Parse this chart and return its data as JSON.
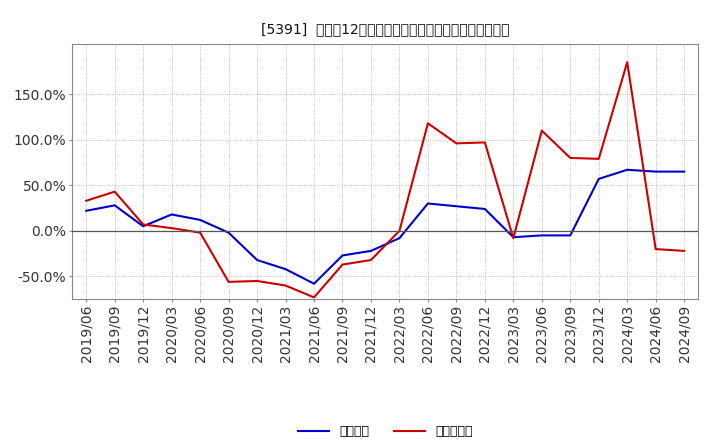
{
  "title": "[5391]  利益だ12か月移動合計の対前年同期増減率の推移",
  "background_color": "#ffffff",
  "plot_bg_color": "#ffffff",
  "grid_color": "#aaaaaa",
  "x_labels": [
    "2019/06",
    "2019/09",
    "2019/12",
    "2020/03",
    "2020/06",
    "2020/09",
    "2020/12",
    "2021/03",
    "2021/06",
    "2021/09",
    "2021/12",
    "2022/03",
    "2022/06",
    "2022/09",
    "2022/12",
    "2023/03",
    "2023/06",
    "2023/09",
    "2023/12",
    "2024/03",
    "2024/06",
    "2024/09"
  ],
  "operating_profit": [
    0.22,
    0.28,
    0.05,
    0.18,
    0.12,
    -0.02,
    -0.32,
    -0.42,
    -0.58,
    -0.27,
    -0.22,
    -0.08,
    0.3,
    0.27,
    0.24,
    -0.07,
    -0.05,
    -0.05,
    0.57,
    0.67,
    0.65,
    0.65
  ],
  "net_profit": [
    0.33,
    0.43,
    0.07,
    0.03,
    -0.02,
    -0.56,
    -0.55,
    -0.6,
    -0.73,
    -0.37,
    -0.32,
    0.0,
    1.18,
    0.96,
    0.97,
    -0.08,
    1.1,
    0.8,
    0.79,
    1.85,
    -0.2,
    -0.22
  ],
  "ylim": [
    -0.75,
    2.05
  ],
  "yticks": [
    -0.5,
    0.0,
    0.5,
    1.0,
    1.5
  ],
  "ytick_labels": [
    "-50.0%",
    "0.0%",
    "50.0%",
    "100.0%",
    "150.0%"
  ],
  "line_color_operating": "#0000cc",
  "line_color_net": "#cc0000",
  "legend_operating": "経常利益",
  "legend_net": "当期純利益"
}
